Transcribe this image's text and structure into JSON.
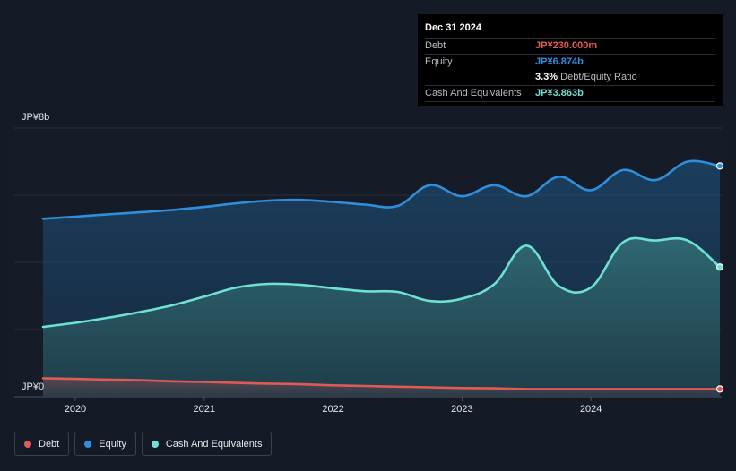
{
  "colors": {
    "debt": "#e05a58",
    "equity": "#2f8fdc",
    "cash": "#6fe0d4",
    "background": "#151b26"
  },
  "tooltip": {
    "date": "Dec 31 2024",
    "debt_label": "Debt",
    "debt_value": "JP¥230.000m",
    "equity_label": "Equity",
    "equity_value": "JP¥6.874b",
    "ratio_value": "3.3%",
    "ratio_label": "Debt/Equity Ratio",
    "cash_label": "Cash And Equivalents",
    "cash_value": "JP¥3.863b"
  },
  "legend": {
    "debt": "Debt",
    "equity": "Equity",
    "cash": "Cash And Equivalents"
  },
  "chart_data": {
    "type": "area",
    "y_unit": "JP¥ billions",
    "ylim": [
      0,
      8
    ],
    "y_tick_labels": [
      {
        "value": 8,
        "label": "JP¥8b"
      },
      {
        "value": 0,
        "label": "JP¥0"
      }
    ],
    "xlim": [
      2019.75,
      2025.0
    ],
    "x_tick_labels": [
      "2020",
      "2021",
      "2022",
      "2023",
      "2024"
    ],
    "x_tick_values": [
      2020,
      2021,
      2022,
      2023,
      2024
    ],
    "grid": true,
    "legend_position": "bottom-left",
    "series": [
      {
        "name": "Equity",
        "key": "equity",
        "x": [
          2019.75,
          2020.0,
          2020.25,
          2020.5,
          2020.75,
          2021.0,
          2021.25,
          2021.5,
          2021.75,
          2022.0,
          2022.25,
          2022.5,
          2022.75,
          2023.0,
          2023.25,
          2023.5,
          2023.75,
          2024.0,
          2024.25,
          2024.5,
          2024.75,
          2025.0
        ],
        "values": [
          5.3,
          5.36,
          5.43,
          5.49,
          5.56,
          5.65,
          5.76,
          5.84,
          5.86,
          5.8,
          5.72,
          5.68,
          6.3,
          5.97,
          6.3,
          5.97,
          6.55,
          6.15,
          6.75,
          6.45,
          7.0,
          6.87
        ]
      },
      {
        "name": "Cash And Equivalents",
        "key": "cash",
        "x": [
          2019.75,
          2020.0,
          2020.25,
          2020.5,
          2020.75,
          2021.0,
          2021.25,
          2021.5,
          2021.75,
          2022.0,
          2022.25,
          2022.5,
          2022.75,
          2023.0,
          2023.25,
          2023.5,
          2023.75,
          2024.0,
          2024.25,
          2024.5,
          2024.75,
          2025.0
        ],
        "values": [
          2.08,
          2.2,
          2.35,
          2.52,
          2.72,
          2.98,
          3.25,
          3.36,
          3.33,
          3.23,
          3.14,
          3.12,
          2.85,
          2.92,
          3.35,
          4.5,
          3.3,
          3.25,
          4.6,
          4.65,
          4.65,
          3.86
        ]
      },
      {
        "name": "Debt",
        "key": "debt",
        "x": [
          2019.75,
          2020.0,
          2020.25,
          2020.5,
          2020.75,
          2021.0,
          2021.25,
          2021.5,
          2021.75,
          2022.0,
          2022.25,
          2022.5,
          2022.75,
          2023.0,
          2023.25,
          2023.5,
          2023.75,
          2024.0,
          2024.25,
          2024.5,
          2024.75,
          2025.0
        ],
        "values": [
          0.55,
          0.53,
          0.51,
          0.49,
          0.46,
          0.44,
          0.41,
          0.39,
          0.37,
          0.34,
          0.32,
          0.3,
          0.28,
          0.26,
          0.25,
          0.23,
          0.23,
          0.23,
          0.23,
          0.23,
          0.23,
          0.23
        ]
      }
    ]
  }
}
